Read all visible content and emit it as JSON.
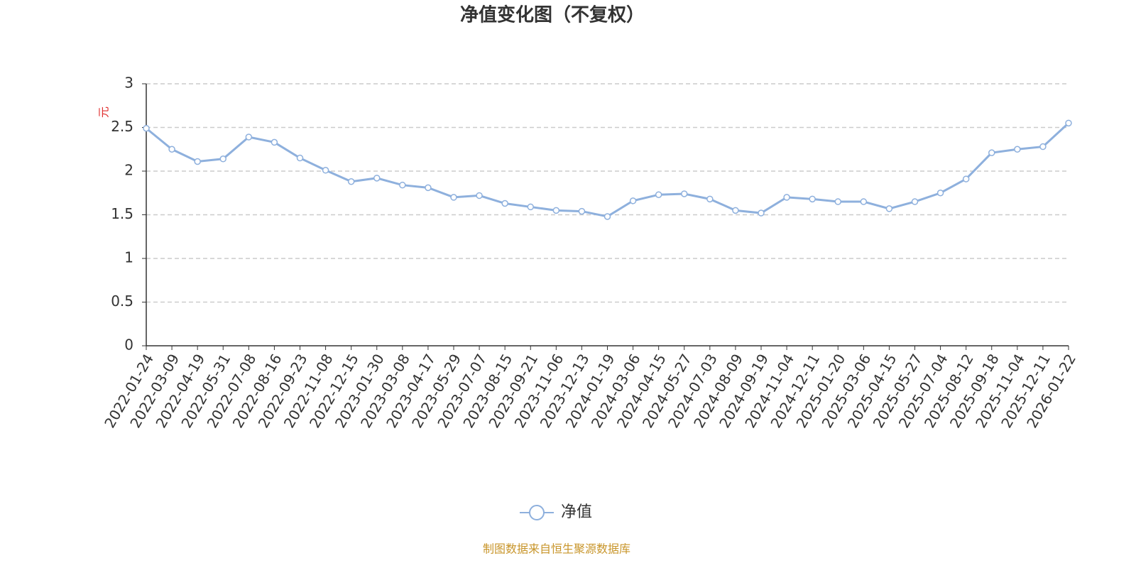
{
  "chart_data": {
    "type": "line",
    "title": "净值变化图（不复权）",
    "y_label": "元",
    "source": "制图数据来自恒生聚源数据库",
    "categories": [
      "2022-01-24",
      "2022-03-09",
      "2022-04-19",
      "2022-05-31",
      "2022-07-08",
      "2022-08-16",
      "2022-09-23",
      "2022-11-08",
      "2022-12-15",
      "2023-01-30",
      "2023-03-08",
      "2023-04-17",
      "2023-05-29",
      "2023-07-07",
      "2023-08-15",
      "2023-09-21",
      "2023-11-06",
      "2023-12-13",
      "2024-01-19",
      "2024-03-06",
      "2024-04-15",
      "2024-05-27",
      "2024-07-03",
      "2024-08-09",
      "2024-09-19",
      "2024-11-04",
      "2024-12-11",
      "2025-01-20",
      "2025-03-06",
      "2025-04-15",
      "2025-05-27",
      "2025-07-04",
      "2025-08-12",
      "2025-09-18",
      "2025-11-04",
      "2025-12-11",
      "2026-01-22"
    ],
    "series": [
      {
        "name": "净值",
        "color": "#8eb0dd",
        "values": [
          2.49,
          2.25,
          2.11,
          2.14,
          2.39,
          2.33,
          2.15,
          2.01,
          1.88,
          1.92,
          1.84,
          1.81,
          1.7,
          1.72,
          1.63,
          1.59,
          1.55,
          1.54,
          1.48,
          1.66,
          1.73,
          1.74,
          1.68,
          1.55,
          1.52,
          1.7,
          1.68,
          1.65,
          1.65,
          1.57,
          1.65,
          1.75,
          1.91,
          2.21,
          2.25,
          2.28,
          2.55
        ]
      }
    ],
    "ylim": [
      0,
      3
    ],
    "yticks": [
      0,
      0.5,
      1,
      1.5,
      2,
      2.5,
      3
    ],
    "grid": true,
    "legend": "bottom"
  }
}
